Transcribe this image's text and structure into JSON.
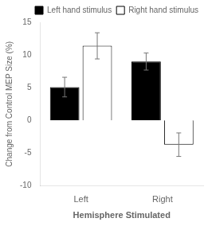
{
  "chart_data": {
    "type": "bar",
    "categories": [
      "Left",
      "Right"
    ],
    "series": [
      {
        "name": "Left hand stimulus",
        "color": "#000000",
        "values": [
          5.1,
          9.0
        ],
        "errors": [
          1.5,
          1.3
        ]
      },
      {
        "name": "Right hand stimulus",
        "color": "#ffffff",
        "values": [
          11.4,
          -3.7
        ],
        "errors": [
          2.0,
          1.8
        ]
      }
    ],
    "ylim": [
      -10,
      15
    ],
    "yticks": [
      -10,
      -5,
      0,
      5,
      10,
      15
    ],
    "ylabel": "Change from Control MEP Size (%)",
    "xlabel": "Hemisphere Stimulated",
    "legend": "upper right",
    "grid": false
  }
}
